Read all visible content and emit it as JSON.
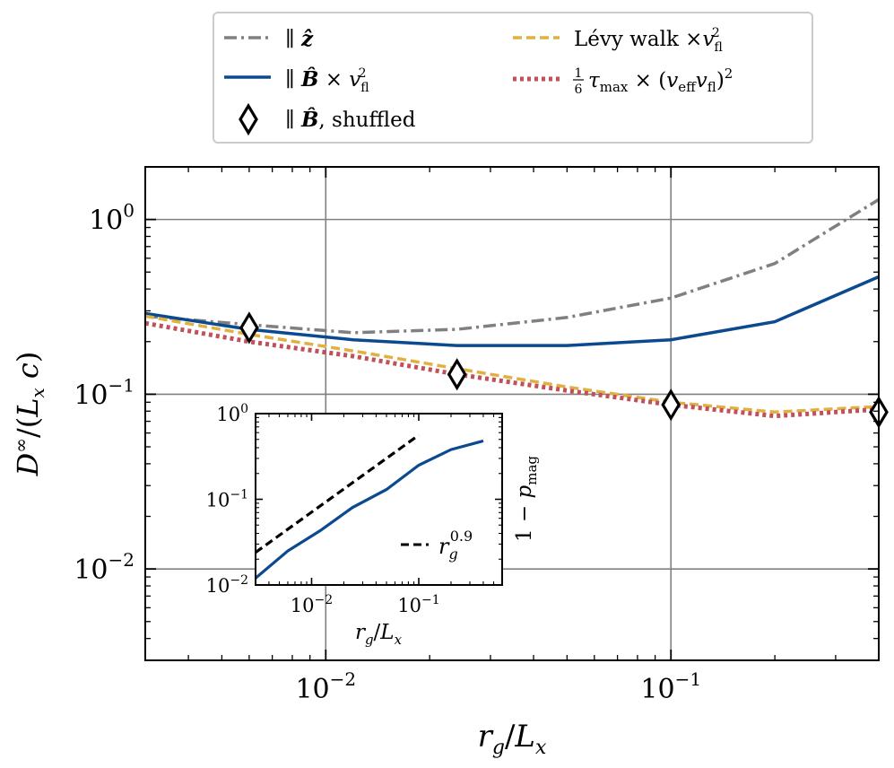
{
  "chart_data": [
    {
      "type": "line",
      "xscale": "log",
      "yscale": "log",
      "xlabel": "r_g / L_x",
      "ylabel": "D∞ / (L_x c)",
      "xlim": [
        0.003,
        0.4
      ],
      "ylim": [
        0.003,
        2.0
      ],
      "xticks": [
        {
          "value": 0.01,
          "base": "10",
          "exp": "−2"
        },
        {
          "value": 0.1,
          "base": "10",
          "exp": "−1"
        }
      ],
      "yticks": [
        {
          "value": 0.01,
          "base": "10",
          "exp": "−2"
        },
        {
          "value": 0.1,
          "base": "10",
          "exp": "−1"
        },
        {
          "value": 1,
          "base": "10",
          "exp": "0"
        }
      ],
      "grid": true,
      "legend_position": "above",
      "series": [
        {
          "key": "z",
          "name": "∥ ẑ",
          "style": "dashdot",
          "color": "#808080",
          "x": [
            0.003,
            0.006,
            0.012,
            0.024,
            0.05,
            0.1,
            0.2,
            0.4
          ],
          "y": [
            0.28,
            0.25,
            0.225,
            0.235,
            0.275,
            0.355,
            0.56,
            1.3
          ]
        },
        {
          "key": "b",
          "name": "∥ B̂ × v_fl²",
          "style": "solid",
          "color": "#0b4a8f",
          "x": [
            0.003,
            0.006,
            0.012,
            0.024,
            0.05,
            0.1,
            0.2,
            0.4
          ],
          "y": [
            0.29,
            0.235,
            0.205,
            0.19,
            0.19,
            0.205,
            0.26,
            0.47
          ]
        },
        {
          "key": "levy",
          "name": "Lévy walk × v_fl²",
          "style": "dashed",
          "color": "#e0b040",
          "x": [
            0.003,
            0.006,
            0.012,
            0.024,
            0.05,
            0.1,
            0.2,
            0.4
          ],
          "y": [
            0.28,
            0.22,
            0.177,
            0.14,
            0.11,
            0.09,
            0.079,
            0.085
          ]
        },
        {
          "key": "tau",
          "name": "(1/6) τ_max × (v_eff v_fl)²",
          "style": "dotted",
          "color": "#c0505a",
          "x": [
            0.003,
            0.006,
            0.012,
            0.024,
            0.05,
            0.1,
            0.2,
            0.4
          ],
          "y": [
            0.255,
            0.2,
            0.165,
            0.13,
            0.105,
            0.087,
            0.075,
            0.082
          ]
        },
        {
          "key": "shuf",
          "name": "∥ B̂, shuffled",
          "style": "diamond",
          "color": "#000000",
          "x": [
            0.006,
            0.024,
            0.1,
            0.4
          ],
          "y": [
            0.24,
            0.13,
            0.087,
            0.079
          ]
        }
      ]
    },
    {
      "type": "line",
      "xscale": "log",
      "yscale": "log",
      "xlabel": "r_g / L_x",
      "ylabel": "1 − p_mag",
      "xlim": [
        0.003,
        0.6
      ],
      "ylim": [
        0.01,
        1.0
      ],
      "xticks": [
        {
          "value": 0.01,
          "base": "10",
          "exp": "−2"
        },
        {
          "value": 0.1,
          "base": "10",
          "exp": "−1"
        }
      ],
      "yticks": [
        {
          "value": 0.01,
          "base": "10",
          "exp": "−2"
        },
        {
          "value": 0.1,
          "base": "10",
          "exp": "−1"
        },
        {
          "value": 1,
          "base": "10",
          "exp": "0"
        }
      ],
      "legend_position": "lower-right",
      "series": [
        {
          "key": "pmag",
          "style": "solid",
          "color": "#0b4a8f",
          "x": [
            0.003,
            0.006,
            0.012,
            0.024,
            0.05,
            0.1,
            0.2,
            0.4
          ],
          "y": [
            0.012,
            0.025,
            0.043,
            0.08,
            0.13,
            0.25,
            0.38,
            0.48
          ]
        },
        {
          "key": "fit",
          "name": "r_g^0.9",
          "style": "dashed",
          "color": "#000000",
          "x": [
            0.003,
            0.1
          ],
          "y": [
            0.024,
            0.56
          ]
        }
      ]
    }
  ]
}
